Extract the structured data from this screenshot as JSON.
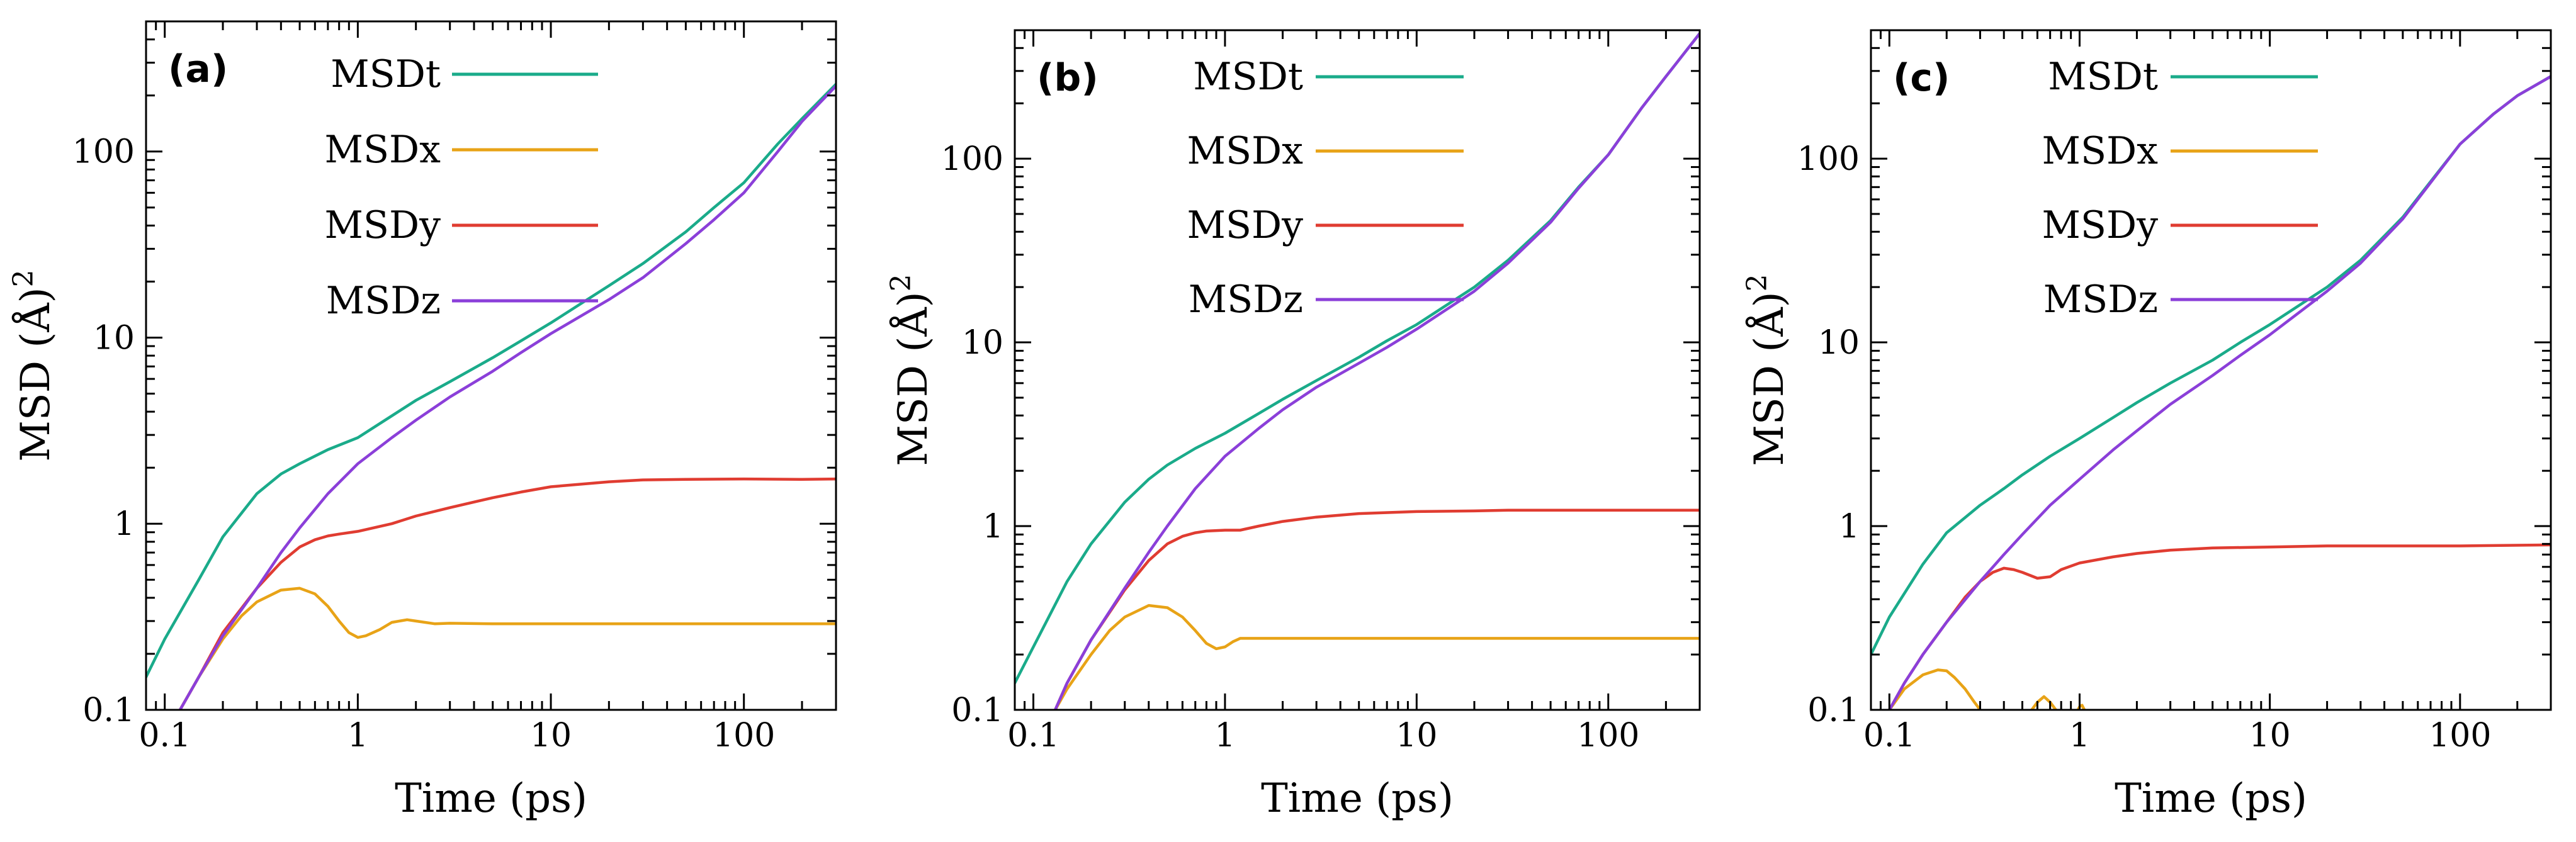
{
  "chart_data": [
    {
      "type": "line",
      "panel_label": "(a)",
      "xlabel": "Time (ps)",
      "ylabel": "MSD (Å)",
      "ylabel_superscript": "2",
      "xscale": "log",
      "yscale": "log",
      "xlim": [
        0.08,
        300
      ],
      "ylim": [
        0.1,
        500
      ],
      "x_ticks": [
        0.1,
        1,
        10,
        100
      ],
      "x_tick_labels": [
        "0.1",
        "1",
        "10",
        "100"
      ],
      "y_ticks": [
        0.1,
        1,
        10,
        100
      ],
      "y_tick_labels": [
        "0.1",
        "1",
        "10",
        "100"
      ],
      "legend_position": "top-left",
      "series": [
        {
          "name": "MSDt",
          "color": "#1aab8a",
          "x": [
            0.08,
            0.1,
            0.15,
            0.2,
            0.3,
            0.4,
            0.5,
            0.7,
            1,
            1.5,
            2,
            3,
            5,
            7,
            10,
            20,
            30,
            50,
            70,
            100,
            150,
            200,
            300
          ],
          "y": [
            0.15,
            0.24,
            0.5,
            0.85,
            1.45,
            1.85,
            2.1,
            2.5,
            2.9,
            3.8,
            4.6,
            5.8,
            7.8,
            9.6,
            12,
            19,
            25,
            37,
            50,
            68,
            110,
            150,
            230
          ]
        },
        {
          "name": "MSDx",
          "color": "#e8a317",
          "x": [
            0.12,
            0.15,
            0.2,
            0.25,
            0.3,
            0.4,
            0.5,
            0.6,
            0.7,
            0.8,
            0.9,
            1,
            1.1,
            1.3,
            1.5,
            1.8,
            2,
            2.5,
            3,
            5,
            10,
            30,
            100,
            300
          ],
          "y": [
            0.1,
            0.15,
            0.24,
            0.32,
            0.38,
            0.44,
            0.45,
            0.42,
            0.36,
            0.3,
            0.26,
            0.245,
            0.25,
            0.27,
            0.295,
            0.305,
            0.3,
            0.29,
            0.292,
            0.29,
            0.29,
            0.29,
            0.29,
            0.29
          ]
        },
        {
          "name": "MSDy",
          "color": "#e03c31",
          "x": [
            0.12,
            0.15,
            0.2,
            0.3,
            0.4,
            0.5,
            0.6,
            0.7,
            0.8,
            1,
            1.5,
            2,
            3,
            5,
            7,
            10,
            20,
            30,
            50,
            100,
            200,
            300
          ],
          "y": [
            0.1,
            0.15,
            0.26,
            0.45,
            0.62,
            0.75,
            0.82,
            0.86,
            0.88,
            0.91,
            1.0,
            1.1,
            1.22,
            1.38,
            1.48,
            1.58,
            1.68,
            1.72,
            1.73,
            1.74,
            1.73,
            1.74
          ]
        },
        {
          "name": "MSDz",
          "color": "#8b3fd9",
          "x": [
            0.12,
            0.15,
            0.2,
            0.3,
            0.4,
            0.5,
            0.7,
            1,
            1.5,
            2,
            3,
            5,
            7,
            10,
            20,
            30,
            50,
            70,
            100,
            150,
            200,
            300
          ],
          "y": [
            0.1,
            0.15,
            0.25,
            0.45,
            0.7,
            0.95,
            1.45,
            2.1,
            2.9,
            3.6,
            4.8,
            6.6,
            8.3,
            10.5,
            16,
            21,
            32,
            43,
            60,
            100,
            145,
            225
          ]
        }
      ]
    },
    {
      "type": "line",
      "panel_label": "(b)",
      "xlabel": "Time (ps)",
      "ylabel": "MSD (Å)",
      "ylabel_superscript": "2",
      "xscale": "log",
      "yscale": "log",
      "xlim": [
        0.08,
        300
      ],
      "ylim": [
        0.1,
        500
      ],
      "x_ticks": [
        0.1,
        1,
        10,
        100
      ],
      "x_tick_labels": [
        "0.1",
        "1",
        "10",
        "100"
      ],
      "y_ticks": [
        0.1,
        1,
        10,
        100
      ],
      "y_tick_labels": [
        "0.1",
        "1",
        "10",
        "100"
      ],
      "legend_position": "top-left",
      "series": [
        {
          "name": "MSDt",
          "color": "#1aab8a",
          "x": [
            0.08,
            0.1,
            0.15,
            0.2,
            0.3,
            0.4,
            0.5,
            0.7,
            1,
            1.5,
            2,
            3,
            5,
            7,
            10,
            20,
            30,
            50,
            70,
            100,
            150,
            200,
            300
          ],
          "y": [
            0.14,
            0.22,
            0.5,
            0.8,
            1.35,
            1.8,
            2.15,
            2.65,
            3.2,
            4.1,
            4.9,
            6.2,
            8.3,
            10.2,
            12.5,
            20,
            28,
            46,
            70,
            105,
            190,
            280,
            480
          ]
        },
        {
          "name": "MSDx",
          "color": "#e8a317",
          "x": [
            0.13,
            0.15,
            0.2,
            0.25,
            0.3,
            0.4,
            0.5,
            0.6,
            0.7,
            0.8,
            0.9,
            1,
            1.1,
            1.2,
            1.5,
            2,
            3,
            5,
            10,
            30,
            100,
            300
          ],
          "y": [
            0.1,
            0.13,
            0.2,
            0.27,
            0.32,
            0.37,
            0.36,
            0.32,
            0.27,
            0.23,
            0.215,
            0.22,
            0.235,
            0.245,
            0.245,
            0.245,
            0.245,
            0.245,
            0.245,
            0.245,
            0.245,
            0.245
          ]
        },
        {
          "name": "MSDy",
          "color": "#e03c31",
          "x": [
            0.13,
            0.15,
            0.2,
            0.3,
            0.4,
            0.5,
            0.6,
            0.7,
            0.8,
            1,
            1.2,
            1.5,
            2,
            3,
            5,
            10,
            20,
            30,
            100,
            300
          ],
          "y": [
            0.1,
            0.14,
            0.24,
            0.45,
            0.65,
            0.8,
            0.88,
            0.92,
            0.94,
            0.95,
            0.95,
            1.0,
            1.06,
            1.12,
            1.17,
            1.2,
            1.21,
            1.22,
            1.22,
            1.22
          ]
        },
        {
          "name": "MSDz",
          "color": "#8b3fd9",
          "x": [
            0.13,
            0.15,
            0.2,
            0.3,
            0.4,
            0.5,
            0.7,
            1,
            1.5,
            2,
            3,
            5,
            7,
            10,
            20,
            30,
            50,
            70,
            100,
            150,
            200,
            300
          ],
          "y": [
            0.1,
            0.14,
            0.24,
            0.46,
            0.72,
            1.0,
            1.6,
            2.4,
            3.4,
            4.3,
            5.7,
            7.7,
            9.4,
            11.8,
            19,
            27,
            45,
            69,
            105,
            190,
            280,
            480
          ]
        }
      ]
    },
    {
      "type": "line",
      "panel_label": "(c)",
      "xlabel": "Time (ps)",
      "ylabel": "MSD (Å)",
      "ylabel_superscript": "2",
      "xscale": "log",
      "yscale": "log",
      "xlim": [
        0.08,
        300
      ],
      "ylim": [
        0.1,
        500
      ],
      "x_ticks": [
        0.1,
        1,
        10,
        100
      ],
      "x_tick_labels": [
        "0.1",
        "1",
        "10",
        "100"
      ],
      "y_ticks": [
        0.1,
        1,
        10,
        100
      ],
      "y_tick_labels": [
        "0.1",
        "1",
        "10",
        "100"
      ],
      "legend_position": "top-left",
      "series": [
        {
          "name": "MSDt",
          "color": "#1aab8a",
          "x": [
            0.08,
            0.1,
            0.15,
            0.2,
            0.3,
            0.4,
            0.5,
            0.7,
            1,
            1.5,
            2,
            3,
            5,
            7,
            10,
            20,
            30,
            50,
            70,
            100,
            150,
            200,
            300
          ],
          "y": [
            0.2,
            0.32,
            0.62,
            0.92,
            1.3,
            1.6,
            1.9,
            2.4,
            3.0,
            3.9,
            4.7,
            6.0,
            8.0,
            10.0,
            12.5,
            20,
            28,
            48,
            75,
            120,
            175,
            220,
            280
          ]
        },
        {
          "name": "MSDx",
          "color": "#e8a317",
          "x": [
            0.1,
            0.12,
            0.15,
            0.18,
            0.2,
            0.22,
            0.25,
            0.28,
            0.3
          ],
          "y": [
            0.1,
            0.13,
            0.155,
            0.165,
            0.163,
            0.15,
            0.13,
            0.11,
            0.1
          ],
          "x2": [
            0.56,
            0.6,
            0.65,
            0.7,
            0.75
          ],
          "y2": [
            0.1,
            0.11,
            0.118,
            0.11,
            0.1
          ],
          "x3": [
            0.98,
            1.0,
            1.03,
            1.06
          ],
          "y3": [
            0.1,
            0.104,
            0.106,
            0.1
          ]
        },
        {
          "name": "MSDy",
          "color": "#e03c31",
          "x": [
            0.1,
            0.12,
            0.15,
            0.2,
            0.25,
            0.3,
            0.35,
            0.4,
            0.45,
            0.5,
            0.6,
            0.7,
            0.8,
            1,
            1.5,
            2,
            3,
            5,
            10,
            20,
            50,
            100,
            300
          ],
          "y": [
            0.1,
            0.14,
            0.2,
            0.3,
            0.41,
            0.5,
            0.56,
            0.59,
            0.58,
            0.56,
            0.52,
            0.53,
            0.58,
            0.63,
            0.68,
            0.71,
            0.74,
            0.76,
            0.77,
            0.78,
            0.78,
            0.78,
            0.79
          ]
        },
        {
          "name": "MSDz",
          "color": "#8b3fd9",
          "x": [
            0.1,
            0.12,
            0.15,
            0.2,
            0.3,
            0.4,
            0.5,
            0.7,
            1,
            1.5,
            2,
            3,
            5,
            7,
            10,
            20,
            30,
            50,
            70,
            100,
            150,
            200,
            300
          ],
          "y": [
            0.1,
            0.14,
            0.2,
            0.3,
            0.5,
            0.7,
            0.9,
            1.3,
            1.8,
            2.6,
            3.3,
            4.6,
            6.6,
            8.5,
            11,
            19,
            27,
            47,
            74,
            120,
            175,
            220,
            280
          ]
        }
      ]
    }
  ]
}
